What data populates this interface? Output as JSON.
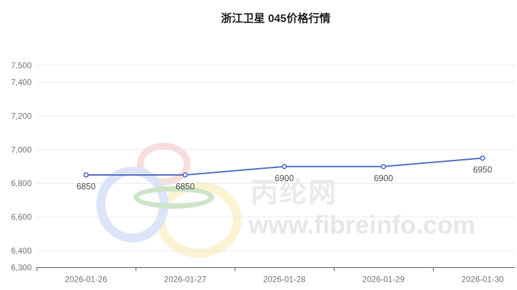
{
  "title": "浙江卫星 045价格行情",
  "watermark": {
    "site_name": "丙纶网",
    "site_url": "www.fibreinfo.com"
  },
  "colors": {
    "line": "#4f69c6",
    "marker_fill": "#ffffff",
    "grid": "#e2e8f2",
    "axis_line": "#4d5360",
    "axis_label": "#6e7079",
    "data_label": "#4d4d4d",
    "title_text": "#1d1d1d"
  },
  "chart_data": {
    "type": "line",
    "title": "浙江卫星 045价格行情",
    "categories": [
      "2026-01-26",
      "2026-01-27",
      "2026-01-28",
      "2026-01-29",
      "2026-01-30"
    ],
    "series": [
      {
        "name": "浙江卫星 045",
        "values": [
          6850,
          6850,
          6900,
          6900,
          6950
        ]
      }
    ],
    "data_labels": [
      "6850",
      "6850",
      "6900",
      "6900",
      "6950"
    ],
    "xlabel": "",
    "ylabel": "",
    "ylim": [
      6300,
      7500
    ],
    "y_ticks": [
      {
        "value": 6300,
        "label": "6,300"
      },
      {
        "value": 6400,
        "label": "6,400"
      },
      {
        "value": 6600,
        "label": "6,600"
      },
      {
        "value": 6800,
        "label": "6,800"
      },
      {
        "value": 7000,
        "label": "7,000"
      },
      {
        "value": 7200,
        "label": "7,200"
      },
      {
        "value": 7400,
        "label": "7,400"
      },
      {
        "value": 7500,
        "label": "7,500"
      }
    ],
    "grid": true,
    "legend": "none",
    "marker": "hollow-circle"
  }
}
